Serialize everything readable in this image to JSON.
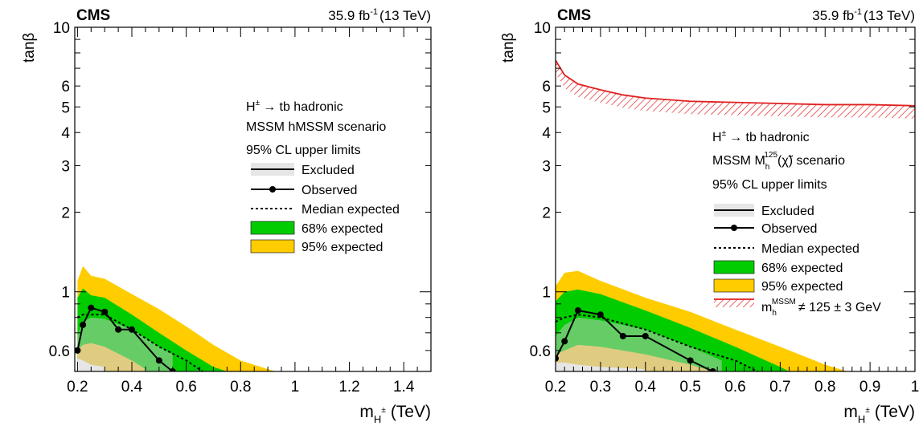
{
  "chart_data": [
    {
      "type": "area",
      "experiment": "CMS",
      "lumi_prefix": "35.9 fb",
      "lumi_exp": "-1",
      "lumi_suffix": "(13 TeV)",
      "xlabel_main": "m",
      "xlabel_sub": "H",
      "xlabel_sup": "±",
      "xlabel_unit": "(TeV)",
      "ylabel": "tanβ",
      "xlim": [
        0.19,
        1.5
      ],
      "ylim": [
        0.5,
        10
      ],
      "yscale": "log",
      "x_ticks": [
        0.2,
        0.4,
        0.6,
        0.8,
        1,
        1.2,
        1.4
      ],
      "x_tick_labels": [
        "0.2",
        "0.4",
        "0.6",
        "0.8",
        "1",
        "1.2",
        "1.4"
      ],
      "y_ticks": [
        0.6,
        1,
        2,
        3,
        4,
        5,
        6,
        10
      ],
      "y_tick_labels": [
        "0.6",
        "1",
        "2",
        "3",
        "4",
        "5",
        "6",
        "10"
      ],
      "legend_title_1": "H",
      "legend_title_1_sup": "±",
      "legend_title_1_rest": "→ tb hadronic",
      "legend_title_2": "MSSM hMSSM scenario",
      "legend_title_3": "95% CL upper limits",
      "legend_items": [
        "Excluded",
        "Observed",
        "Median expected",
        "68% expected",
        "95% expected"
      ],
      "band95": {
        "x": [
          0.2,
          0.22,
          0.25,
          0.3,
          0.4,
          0.5,
          0.6,
          0.7,
          0.8,
          0.9,
          0.93
        ],
        "y": [
          1.1,
          1.25,
          1.15,
          1.12,
          0.98,
          0.86,
          0.74,
          0.63,
          0.55,
          0.51,
          0.5
        ]
      },
      "band68": {
        "x": [
          0.2,
          0.22,
          0.25,
          0.3,
          0.4,
          0.5,
          0.6,
          0.7,
          0.75
        ],
        "y": [
          0.95,
          1.03,
          0.97,
          0.95,
          0.82,
          0.7,
          0.6,
          0.52,
          0.5
        ]
      },
      "lower68": {
        "x": [
          0.2,
          0.22,
          0.25,
          0.3,
          0.4,
          0.5,
          0.55
        ],
        "y": [
          0.68,
          0.77,
          0.8,
          0.79,
          0.72,
          0.62,
          0.58
        ]
      },
      "lower95": {
        "x": [
          0.2,
          0.22,
          0.25,
          0.3,
          0.4,
          0.45
        ],
        "y": [
          0.6,
          0.63,
          0.64,
          0.62,
          0.55,
          0.51
        ]
      },
      "excluded": {
        "x": [
          0.2,
          0.22,
          0.25,
          0.3
        ],
        "y": [
          0.56,
          0.55,
          0.53,
          0.52
        ]
      },
      "observed": {
        "x": [
          0.2,
          0.22,
          0.25,
          0.3,
          0.35,
          0.4,
          0.5,
          0.55
        ],
        "y": [
          0.6,
          0.75,
          0.87,
          0.84,
          0.72,
          0.72,
          0.55,
          0.5
        ]
      },
      "median": {
        "x": [
          0.2,
          0.22,
          0.25,
          0.3,
          0.4,
          0.5,
          0.6,
          0.66
        ],
        "y": [
          0.8,
          0.82,
          0.82,
          0.82,
          0.72,
          0.62,
          0.55,
          0.5
        ]
      }
    },
    {
      "type": "area",
      "experiment": "CMS",
      "lumi_prefix": "35.9 fb",
      "lumi_exp": "-1",
      "lumi_suffix": "(13 TeV)",
      "xlabel_main": "m",
      "xlabel_sub": "H",
      "xlabel_sup": "±",
      "xlabel_unit": "(TeV)",
      "ylabel": "tanβ",
      "xlim": [
        0.2,
        1.0
      ],
      "ylim": [
        0.5,
        10
      ],
      "yscale": "log",
      "x_ticks": [
        0.2,
        0.3,
        0.4,
        0.5,
        0.6,
        0.7,
        0.8,
        0.9,
        1
      ],
      "x_tick_labels": [
        "0.2",
        "0.3",
        "0.4",
        "0.5",
        "0.6",
        "0.7",
        "0.8",
        "0.9",
        "1"
      ],
      "y_ticks": [
        0.6,
        1,
        2,
        3,
        4,
        5,
        6,
        10
      ],
      "y_tick_labels": [
        "0.6",
        "1",
        "2",
        "3",
        "4",
        "5",
        "6",
        "10"
      ],
      "legend_title_1": "H",
      "legend_title_1_sup": "±",
      "legend_title_1_rest": "→ tb hadronic",
      "legend_title_2": "MSSM M",
      "legend_title_2_sub": "h",
      "legend_title_2_sup": "125",
      "legend_title_2_rest": "(χ̃) scenario",
      "legend_title_3": "95% CL upper limits",
      "legend_items": [
        "Excluded",
        "Observed",
        "Median expected",
        "68% expected",
        "95% expected"
      ],
      "legend_mh_main": "m",
      "legend_mh_sub": "h",
      "legend_mh_sup": "MSSM",
      "legend_mh_rest": "≠ 125 ± 3 GeV",
      "mh_boundary": {
        "x": [
          0.2,
          0.22,
          0.25,
          0.3,
          0.35,
          0.4,
          0.5,
          0.6,
          0.7,
          0.8,
          0.9,
          1.0
        ],
        "y": [
          7.5,
          6.6,
          6.1,
          5.8,
          5.55,
          5.4,
          5.25,
          5.2,
          5.15,
          5.1,
          5.1,
          5.05
        ]
      },
      "band95": {
        "x": [
          0.2,
          0.22,
          0.25,
          0.3,
          0.4,
          0.5,
          0.6,
          0.7,
          0.8,
          0.85
        ],
        "y": [
          1.05,
          1.18,
          1.2,
          1.1,
          0.95,
          0.84,
          0.72,
          0.62,
          0.53,
          0.5
        ]
      },
      "band68": {
        "x": [
          0.2,
          0.22,
          0.25,
          0.3,
          0.4,
          0.5,
          0.6,
          0.7,
          0.72
        ],
        "y": [
          0.92,
          1.0,
          1.02,
          0.98,
          0.85,
          0.73,
          0.62,
          0.52,
          0.5
        ]
      },
      "lower68": {
        "x": [
          0.2,
          0.22,
          0.25,
          0.3,
          0.4,
          0.5,
          0.57
        ],
        "y": [
          0.68,
          0.75,
          0.8,
          0.78,
          0.72,
          0.62,
          0.55
        ]
      },
      "lower95": {
        "x": [
          0.2,
          0.22,
          0.25,
          0.3,
          0.4,
          0.5,
          0.55
        ],
        "y": [
          0.58,
          0.6,
          0.63,
          0.62,
          0.58,
          0.53,
          0.5
        ]
      },
      "excluded": {
        "x": [
          0.2,
          0.22,
          0.25,
          0.3,
          0.4
        ],
        "y": [
          0.54,
          0.54,
          0.53,
          0.52,
          0.51
        ]
      },
      "observed": {
        "x": [
          0.2,
          0.22,
          0.25,
          0.3,
          0.35,
          0.4,
          0.5,
          0.55
        ],
        "y": [
          0.56,
          0.65,
          0.85,
          0.82,
          0.68,
          0.68,
          0.55,
          0.5
        ]
      },
      "median": {
        "x": [
          0.2,
          0.22,
          0.25,
          0.3,
          0.4,
          0.5,
          0.6,
          0.65
        ],
        "y": [
          0.77,
          0.8,
          0.82,
          0.8,
          0.72,
          0.62,
          0.55,
          0.5
        ]
      }
    }
  ],
  "colors": {
    "band95": "#ffcc00",
    "band68": "#00cc00",
    "excluded_fill": "#e6e6e6",
    "mh_hatch": "#e02020",
    "axis": "#000000"
  }
}
